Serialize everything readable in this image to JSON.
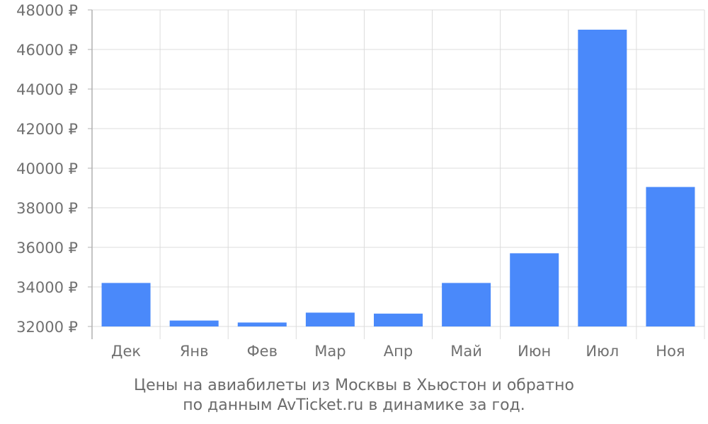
{
  "chart_data": {
    "type": "bar",
    "categories": [
      "Дек",
      "Янв",
      "Фев",
      "Мар",
      "Апр",
      "Май",
      "Июн",
      "Июл",
      "Ноя"
    ],
    "values": [
      34200,
      32300,
      32200,
      32700,
      32650,
      34200,
      35700,
      47000,
      39050
    ],
    "ylim": [
      32000,
      48000
    ],
    "yticks": [
      32000,
      34000,
      36000,
      38000,
      40000,
      42000,
      44000,
      46000,
      48000
    ],
    "y_tick_suffix": " ₽",
    "bar_color": "#4a89fa",
    "grid": true,
    "caption_line1": "Цены на авиабилеты из Москвы в Хьюстон и обратно",
    "caption_line2": "по данным AvTicket.ru в динамике за год."
  }
}
